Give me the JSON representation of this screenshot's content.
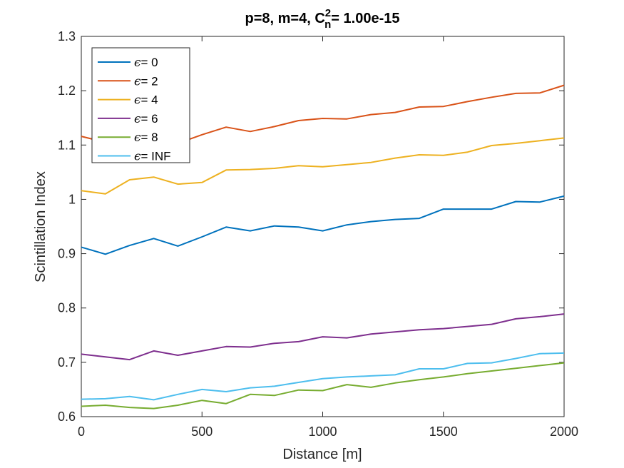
{
  "chart_data": {
    "type": "line",
    "title": {
      "prefix": "p=8, m=4, C",
      "sup": "2",
      "sub": "n",
      "suffix": "= 1.00e-15"
    },
    "xlabel": "Distance [m]",
    "ylabel": "Scintillation Index",
    "xlim": [
      0,
      2000
    ],
    "ylim": [
      0.6,
      1.3
    ],
    "xticks": [
      0,
      500,
      1000,
      1500,
      2000
    ],
    "xtick_labels": [
      "0",
      "500",
      "1000",
      "1500",
      "2000"
    ],
    "yticks": [
      0.6,
      0.7,
      0.8,
      0.9,
      1.0,
      1.1,
      1.2,
      1.3
    ],
    "ytick_labels": [
      "0.6",
      "0.7",
      "0.8",
      "0.9",
      "1",
      "1.1",
      "1.2",
      "1.3"
    ],
    "grid": false,
    "legend_position": "top-left",
    "legend_symbol": "ϵ",
    "x": [
      0,
      100,
      200,
      300,
      400,
      500,
      600,
      700,
      800,
      900,
      1000,
      1100,
      1200,
      1300,
      1400,
      1500,
      1600,
      1700,
      1800,
      1900,
      2000
    ],
    "series": [
      {
        "name": "= 0",
        "color": "#0072BD",
        "values": [
          0.912,
          0.899,
          0.915,
          0.928,
          0.914,
          0.931,
          0.949,
          0.942,
          0.951,
          0.949,
          0.942,
          0.953,
          0.959,
          0.963,
          0.965,
          0.982,
          0.982,
          0.982,
          0.996,
          0.995,
          1.006
        ]
      },
      {
        "name": "= 2",
        "color": "#D95319",
        "values": [
          1.116,
          1.105,
          1.112,
          1.108,
          1.103,
          1.119,
          1.133,
          1.125,
          1.134,
          1.145,
          1.149,
          1.148,
          1.156,
          1.16,
          1.17,
          1.171,
          1.18,
          1.188,
          1.195,
          1.196,
          1.21
        ]
      },
      {
        "name": "= 4",
        "color": "#EDB120",
        "values": [
          1.016,
          1.01,
          1.036,
          1.041,
          1.028,
          1.031,
          1.054,
          1.055,
          1.057,
          1.062,
          1.06,
          1.064,
          1.068,
          1.076,
          1.082,
          1.081,
          1.087,
          1.099,
          1.103,
          1.108,
          1.113
        ]
      },
      {
        "name": "= 6",
        "color": "#7E2F8E",
        "values": [
          0.715,
          0.71,
          0.705,
          0.721,
          0.713,
          0.721,
          0.729,
          0.728,
          0.735,
          0.738,
          0.747,
          0.745,
          0.752,
          0.756,
          0.76,
          0.762,
          0.766,
          0.77,
          0.78,
          0.784,
          0.789
        ]
      },
      {
        "name": "= 8",
        "color": "#77AC30",
        "values": [
          0.619,
          0.621,
          0.617,
          0.615,
          0.621,
          0.63,
          0.624,
          0.641,
          0.639,
          0.649,
          0.648,
          0.659,
          0.654,
          0.662,
          0.668,
          0.673,
          0.679,
          0.684,
          0.689,
          0.694,
          0.699
        ]
      },
      {
        "name": "= INF",
        "color": "#4DBEEE",
        "values": [
          0.632,
          0.633,
          0.637,
          0.631,
          0.641,
          0.65,
          0.646,
          0.653,
          0.656,
          0.663,
          0.67,
          0.673,
          0.675,
          0.677,
          0.688,
          0.688,
          0.698,
          0.699,
          0.707,
          0.716,
          0.717
        ]
      }
    ]
  }
}
